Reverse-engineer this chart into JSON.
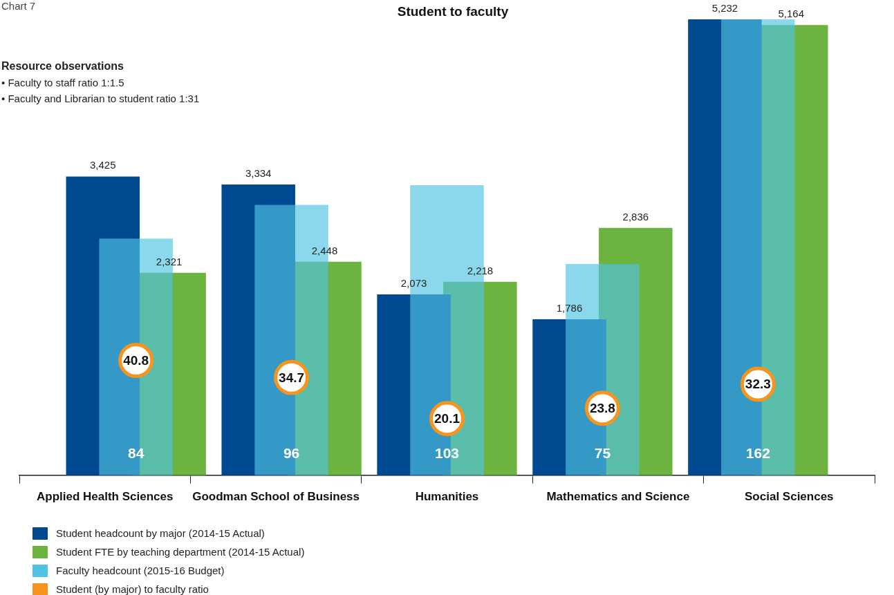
{
  "chart_data": {
    "type": "bar",
    "title": "Student to faculty",
    "annotations": [
      "Chart 7",
      "Resource observations",
      "• Faculty to staff ratio 1:1.5",
      "• Faculty and Librarian to student ratio 1:31"
    ],
    "categories": [
      "Applied Health Sciences",
      "Goodman School of Business",
      "Humanities",
      "Mathematics and Science",
      "Social Sciences"
    ],
    "tick_labels": "x",
    "legend": "bottom left",
    "series": [
      {
        "name": "Student headcount by major (2014-15 Actual)",
        "color": "#004990",
        "values": [
          3425,
          3334,
          2073,
          1786,
          5232
        ],
        "value_labels": [
          "3,425",
          "3,334",
          "2,073",
          "1,786",
          "5,232"
        ]
      },
      {
        "name": "Student FTE by teaching department (2014-15 Actual)",
        "color": "#6db33f",
        "values": [
          2321,
          2448,
          2218,
          2836,
          5164
        ],
        "value_labels": [
          "2,321",
          "2,448",
          "2,218",
          "2,836",
          "5,164"
        ]
      },
      {
        "name": "Faculty headcount (2015-16 Budget)",
        "color": "#4fc3e2",
        "axis": "y2",
        "values": [
          84,
          96,
          103,
          75,
          162
        ],
        "value_labels": [
          "84",
          "96",
          "103",
          "75",
          "162"
        ]
      },
      {
        "name": "Student (by major) to faculty ratio",
        "type": "scatter",
        "color": "#f7941d",
        "axis": "y2",
        "marker": "circle",
        "values": [
          40.8,
          34.7,
          20.1,
          23.8,
          32.3
        ],
        "value_labels": [
          "40.8",
          "34.7",
          "20.1",
          "23.8",
          "32.3"
        ]
      }
    ]
  }
}
